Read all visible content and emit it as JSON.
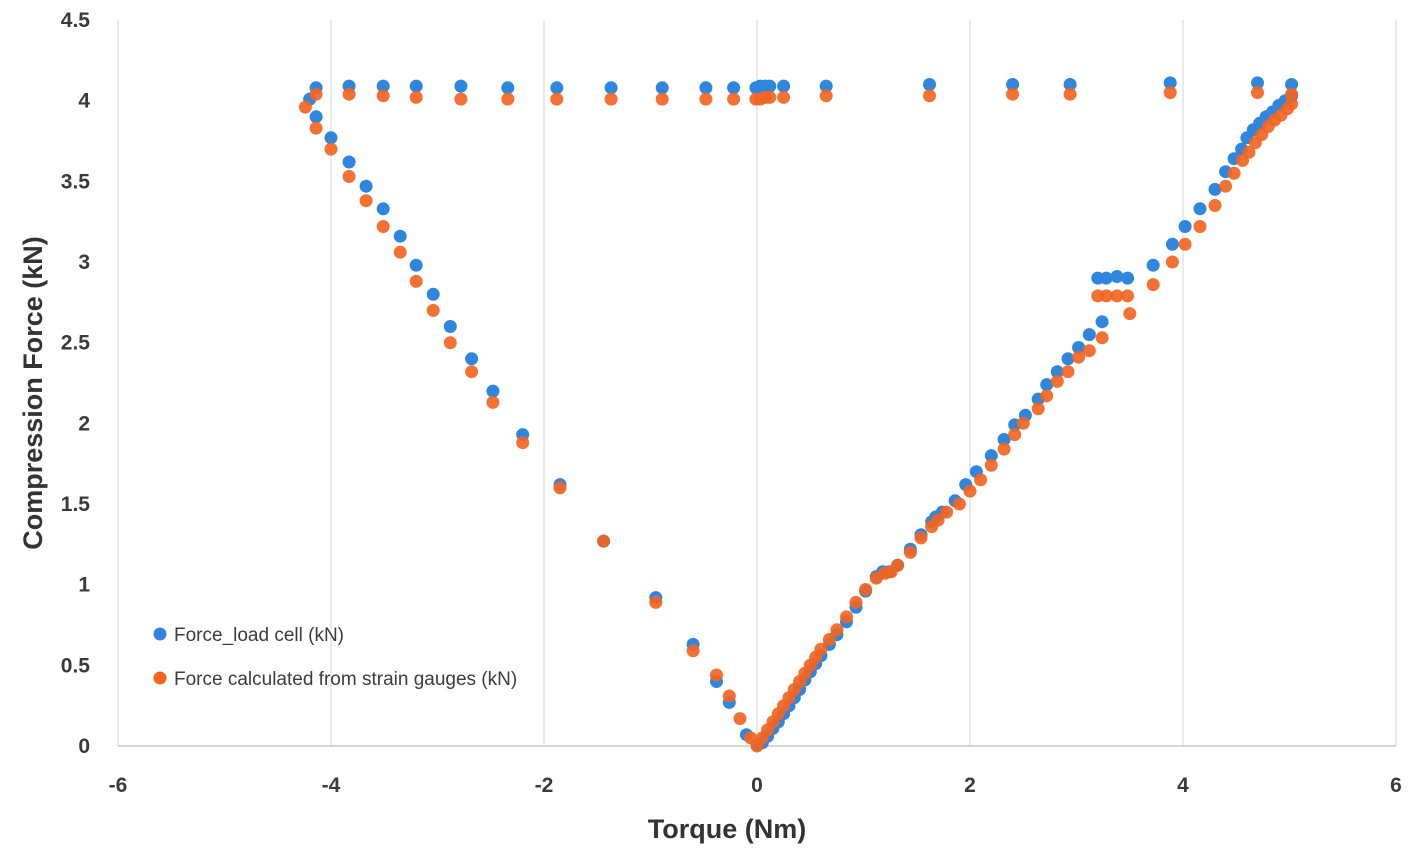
{
  "chart_data": {
    "type": "scatter",
    "title": "",
    "xlabel": "Torque (Nm)",
    "ylabel": "Compression Force (kN)",
    "xlim": [
      -6,
      6
    ],
    "ylim": [
      0,
      4.5
    ],
    "x_ticks": [
      "-6",
      "-4",
      "-2",
      "0",
      "2",
      "4",
      "6"
    ],
    "y_ticks": [
      "0",
      "0.5",
      "1",
      "1.5",
      "2",
      "2.5",
      "3",
      "3.5",
      "4",
      "4.5"
    ],
    "x_tick_values": [
      -6,
      -4,
      -2,
      0,
      2,
      4,
      6
    ],
    "y_tick_values": [
      0,
      0.5,
      1,
      1.5,
      2,
      2.5,
      3,
      3.5,
      4,
      4.5
    ],
    "grid": {
      "horizontal": false,
      "vertical": true
    },
    "legend": {
      "position": "bottom-left"
    },
    "series": [
      {
        "name": "Force_load cell (kN)",
        "color": "#2e86de",
        "points": [
          [
            -4.2,
            4.01
          ],
          [
            -4.14,
            4.08
          ],
          [
            -3.83,
            4.09
          ],
          [
            -3.51,
            4.09
          ],
          [
            -3.2,
            4.09
          ],
          [
            -2.78,
            4.09
          ],
          [
            -2.34,
            4.08
          ],
          [
            -1.88,
            4.08
          ],
          [
            -1.37,
            4.08
          ],
          [
            -0.89,
            4.08
          ],
          [
            -0.48,
            4.08
          ],
          [
            -0.22,
            4.08
          ],
          [
            -0.01,
            4.08
          ],
          [
            0.03,
            4.09
          ],
          [
            0.08,
            4.09
          ],
          [
            0.12,
            4.09
          ],
          [
            0.25,
            4.09
          ],
          [
            0.65,
            4.09
          ],
          [
            1.62,
            4.1
          ],
          [
            2.4,
            4.1
          ],
          [
            2.94,
            4.1
          ],
          [
            3.88,
            4.11
          ],
          [
            4.7,
            4.11
          ],
          [
            5.02,
            4.1
          ],
          [
            -4.14,
            3.9
          ],
          [
            -4.0,
            3.77
          ],
          [
            -3.83,
            3.62
          ],
          [
            -3.67,
            3.47
          ],
          [
            -3.51,
            3.33
          ],
          [
            -3.35,
            3.16
          ],
          [
            -3.2,
            2.98
          ],
          [
            -3.04,
            2.8
          ],
          [
            -2.88,
            2.6
          ],
          [
            -2.68,
            2.4
          ],
          [
            -2.48,
            2.2
          ],
          [
            -2.2,
            1.93
          ],
          [
            -1.85,
            1.62
          ],
          [
            -1.44,
            1.27
          ],
          [
            -0.95,
            0.92
          ],
          [
            -0.6,
            0.63
          ],
          [
            -0.38,
            0.4
          ],
          [
            -0.26,
            0.27
          ],
          [
            -0.1,
            0.07
          ],
          [
            0.0,
            0.01
          ],
          [
            0.05,
            0.02
          ],
          [
            0.1,
            0.06
          ],
          [
            0.15,
            0.11
          ],
          [
            0.2,
            0.15
          ],
          [
            0.25,
            0.2
          ],
          [
            0.3,
            0.25
          ],
          [
            0.35,
            0.3
          ],
          [
            0.4,
            0.35
          ],
          [
            0.45,
            0.41
          ],
          [
            0.5,
            0.46
          ],
          [
            0.55,
            0.51
          ],
          [
            0.6,
            0.56
          ],
          [
            0.68,
            0.63
          ],
          [
            0.75,
            0.69
          ],
          [
            0.84,
            0.77
          ],
          [
            0.93,
            0.86
          ],
          [
            1.02,
            0.96
          ],
          [
            1.12,
            1.05
          ],
          [
            1.18,
            1.08
          ],
          [
            1.24,
            1.08
          ],
          [
            1.32,
            1.12
          ],
          [
            1.44,
            1.22
          ],
          [
            1.54,
            1.31
          ],
          [
            1.64,
            1.39
          ],
          [
            1.68,
            1.42
          ],
          [
            1.74,
            1.45
          ],
          [
            1.86,
            1.52
          ],
          [
            1.96,
            1.62
          ],
          [
            2.06,
            1.7
          ],
          [
            2.2,
            1.8
          ],
          [
            2.32,
            1.9
          ],
          [
            2.42,
            1.99
          ],
          [
            2.52,
            2.05
          ],
          [
            2.64,
            2.15
          ],
          [
            2.72,
            2.24
          ],
          [
            2.82,
            2.32
          ],
          [
            2.92,
            2.4
          ],
          [
            3.02,
            2.47
          ],
          [
            3.12,
            2.55
          ],
          [
            3.2,
            2.9
          ],
          [
            3.28,
            2.9
          ],
          [
            3.38,
            2.91
          ],
          [
            3.48,
            2.9
          ],
          [
            3.24,
            2.63
          ],
          [
            3.72,
            2.98
          ],
          [
            3.9,
            3.11
          ],
          [
            4.02,
            3.22
          ],
          [
            4.16,
            3.33
          ],
          [
            4.3,
            3.45
          ],
          [
            4.4,
            3.56
          ],
          [
            4.48,
            3.64
          ],
          [
            4.55,
            3.7
          ],
          [
            4.6,
            3.77
          ],
          [
            4.66,
            3.82
          ],
          [
            4.72,
            3.86
          ],
          [
            4.78,
            3.9
          ],
          [
            4.84,
            3.93
          ],
          [
            4.9,
            3.97
          ],
          [
            4.96,
            4.0
          ],
          [
            5.02,
            4.03
          ]
        ]
      },
      {
        "name": "Force calculated from strain gauges (kN)",
        "color": "#f26522",
        "points": [
          [
            -4.24,
            3.96
          ],
          [
            -4.14,
            4.04
          ],
          [
            -3.83,
            4.04
          ],
          [
            -3.51,
            4.03
          ],
          [
            -3.2,
            4.02
          ],
          [
            -2.78,
            4.01
          ],
          [
            -2.34,
            4.01
          ],
          [
            -1.88,
            4.01
          ],
          [
            -1.37,
            4.01
          ],
          [
            -0.89,
            4.01
          ],
          [
            -0.48,
            4.01
          ],
          [
            -0.22,
            4.01
          ],
          [
            -0.01,
            4.01
          ],
          [
            0.03,
            4.01
          ],
          [
            0.08,
            4.02
          ],
          [
            0.12,
            4.02
          ],
          [
            0.25,
            4.02
          ],
          [
            0.65,
            4.03
          ],
          [
            1.62,
            4.03
          ],
          [
            2.4,
            4.04
          ],
          [
            2.94,
            4.04
          ],
          [
            3.88,
            4.05
          ],
          [
            4.7,
            4.05
          ],
          [
            5.02,
            4.04
          ],
          [
            -4.14,
            3.83
          ],
          [
            -4.0,
            3.7
          ],
          [
            -3.83,
            3.53
          ],
          [
            -3.67,
            3.38
          ],
          [
            -3.51,
            3.22
          ],
          [
            -3.35,
            3.06
          ],
          [
            -3.2,
            2.88
          ],
          [
            -3.04,
            2.7
          ],
          [
            -2.88,
            2.5
          ],
          [
            -2.68,
            2.32
          ],
          [
            -2.48,
            2.13
          ],
          [
            -2.2,
            1.88
          ],
          [
            -1.85,
            1.6
          ],
          [
            -1.44,
            1.27
          ],
          [
            -0.95,
            0.89
          ],
          [
            -0.6,
            0.59
          ],
          [
            -0.38,
            0.44
          ],
          [
            -0.26,
            0.31
          ],
          [
            -0.16,
            0.17
          ],
          [
            -0.06,
            0.05
          ],
          [
            0.0,
            0.0
          ],
          [
            0.05,
            0.05
          ],
          [
            0.1,
            0.1
          ],
          [
            0.15,
            0.15
          ],
          [
            0.2,
            0.2
          ],
          [
            0.25,
            0.25
          ],
          [
            0.3,
            0.3
          ],
          [
            0.35,
            0.35
          ],
          [
            0.4,
            0.4
          ],
          [
            0.45,
            0.45
          ],
          [
            0.5,
            0.5
          ],
          [
            0.55,
            0.55
          ],
          [
            0.6,
            0.6
          ],
          [
            0.68,
            0.66
          ],
          [
            0.75,
            0.72
          ],
          [
            0.84,
            0.8
          ],
          [
            0.93,
            0.89
          ],
          [
            1.02,
            0.97
          ],
          [
            1.12,
            1.04
          ],
          [
            1.2,
            1.07
          ],
          [
            1.26,
            1.08
          ],
          [
            1.32,
            1.12
          ],
          [
            1.44,
            1.2
          ],
          [
            1.54,
            1.29
          ],
          [
            1.64,
            1.36
          ],
          [
            1.7,
            1.4
          ],
          [
            1.78,
            1.45
          ],
          [
            1.9,
            1.5
          ],
          [
            2.0,
            1.58
          ],
          [
            2.1,
            1.65
          ],
          [
            2.2,
            1.74
          ],
          [
            2.32,
            1.84
          ],
          [
            2.42,
            1.93
          ],
          [
            2.5,
            2.0
          ],
          [
            2.64,
            2.09
          ],
          [
            2.72,
            2.17
          ],
          [
            2.82,
            2.26
          ],
          [
            2.92,
            2.32
          ],
          [
            3.02,
            2.41
          ],
          [
            3.12,
            2.45
          ],
          [
            3.2,
            2.79
          ],
          [
            3.28,
            2.79
          ],
          [
            3.38,
            2.79
          ],
          [
            3.48,
            2.79
          ],
          [
            3.24,
            2.53
          ],
          [
            3.5,
            2.68
          ],
          [
            3.72,
            2.86
          ],
          [
            3.9,
            3.0
          ],
          [
            4.02,
            3.11
          ],
          [
            4.16,
            3.22
          ],
          [
            4.3,
            3.35
          ],
          [
            4.4,
            3.47
          ],
          [
            4.48,
            3.55
          ],
          [
            4.56,
            3.63
          ],
          [
            4.62,
            3.68
          ],
          [
            4.68,
            3.74
          ],
          [
            4.74,
            3.79
          ],
          [
            4.8,
            3.84
          ],
          [
            4.86,
            3.88
          ],
          [
            4.92,
            3.91
          ],
          [
            4.98,
            3.95
          ],
          [
            5.02,
            3.98
          ]
        ]
      }
    ]
  }
}
